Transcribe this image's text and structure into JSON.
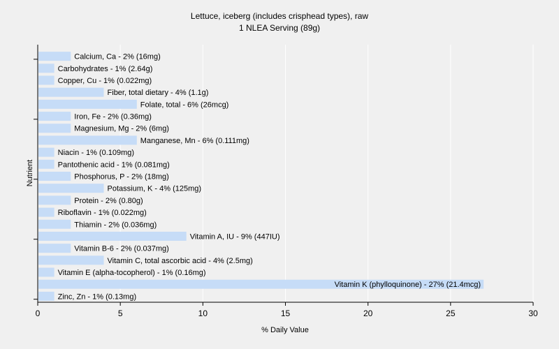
{
  "chart_data": {
    "type": "bar",
    "orientation": "horizontal",
    "title": "Lettuce, iceberg (includes crisphead types), raw",
    "subtitle": "1 NLEA Serving (89g)",
    "xlabel": "% Daily Value",
    "ylabel": "Nutrient",
    "xlim": [
      0,
      30
    ],
    "xticks": [
      "0",
      "5",
      "10",
      "15",
      "20",
      "25",
      "30"
    ],
    "grid": true,
    "bar_color": "#c6dcf7",
    "grid_color": "#ffffff",
    "categories": [
      "Calcium, Ca",
      "Carbohydrates",
      "Copper, Cu",
      "Fiber, total dietary",
      "Folate, total",
      "Iron, Fe",
      "Magnesium, Mg",
      "Manganese, Mn",
      "Niacin",
      "Pantothenic acid",
      "Phosphorus, P",
      "Potassium, K",
      "Protein",
      "Riboflavin",
      "Thiamin",
      "Vitamin A, IU",
      "Vitamin B-6",
      "Vitamin C, total ascorbic acid",
      "Vitamin E (alpha-tocopherol)",
      "Vitamin K (phylloquinone)",
      "Zinc, Zn"
    ],
    "values": [
      2,
      1,
      1,
      4,
      6,
      2,
      2,
      6,
      1,
      1,
      2,
      4,
      2,
      1,
      2,
      9,
      2,
      4,
      1,
      27,
      1
    ],
    "labels": [
      "Calcium, Ca - 2% (16mg)",
      "Carbohydrates - 1% (2.64g)",
      "Copper, Cu - 1% (0.022mg)",
      "Fiber, total dietary - 4% (1.1g)",
      "Folate, total - 6% (26mcg)",
      "Iron, Fe - 2% (0.36mg)",
      "Magnesium, Mg - 2% (6mg)",
      "Manganese, Mn - 6% (0.111mg)",
      "Niacin - 1% (0.109mg)",
      "Pantothenic acid - 1% (0.081mg)",
      "Phosphorus, P - 2% (18mg)",
      "Potassium, K - 4% (125mg)",
      "Protein - 2% (0.80g)",
      "Riboflavin - 1% (0.022mg)",
      "Thiamin - 2% (0.036mg)",
      "Vitamin A, IU - 9% (447IU)",
      "Vitamin B-6 - 2% (0.037mg)",
      "Vitamin C, total ascorbic acid - 4% (2.5mg)",
      "Vitamin E (alpha-tocopherol) - 1% (0.16mg)",
      "Vitamin K (phylloquinone) - 27% (21.4mcg)",
      "Zinc, Zn - 1% (0.13mg)"
    ]
  }
}
